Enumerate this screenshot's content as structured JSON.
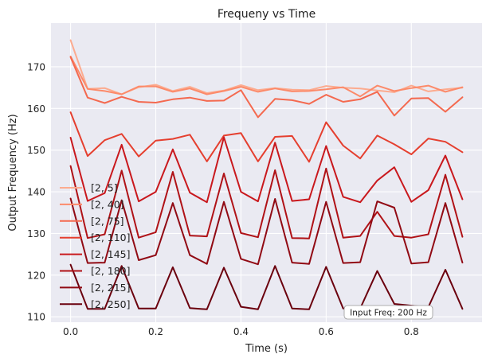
{
  "chart_data": {
    "type": "line",
    "title": "Frequeny vs Time",
    "xlabel": "Time (s)",
    "ylabel": "Output Frequency (Hz)",
    "xlim": [
      -0.046,
      0.966
    ],
    "ylim": [
      108.7,
      180.5
    ],
    "xticks": [
      0.0,
      0.2,
      0.4,
      0.6,
      0.8
    ],
    "xtick_labels": [
      "0.0",
      "0.2",
      "0.4",
      "0.6",
      "0.8"
    ],
    "yticks": [
      110,
      120,
      130,
      140,
      150,
      160,
      170
    ],
    "ytick_labels": [
      "110",
      "120",
      "130",
      "140",
      "150",
      "160",
      "170"
    ],
    "grid": true,
    "legend_position": "left",
    "annotation": "Input Freq: 200 Hz",
    "x": [
      0.0,
      0.04,
      0.08,
      0.12,
      0.16,
      0.2,
      0.24,
      0.28,
      0.32,
      0.36,
      0.4,
      0.44,
      0.48,
      0.52,
      0.56,
      0.6,
      0.64,
      0.68,
      0.72,
      0.76,
      0.8,
      0.84,
      0.88,
      0.92
    ],
    "series": [
      {
        "name": "[2, 5]",
        "color": "#fcab8f",
        "values": [
          176.4,
          164.7,
          164.9,
          163.4,
          165.1,
          165.7,
          164.2,
          165.2,
          163.7,
          164.3,
          165.6,
          164.4,
          164.9,
          164.5,
          164.4,
          165.4,
          165.0,
          164.8,
          164.3,
          163.9,
          165.5,
          164.1,
          164.6,
          165.0
        ]
      },
      {
        "name": "[2, 40]",
        "color": "#fc8a6a",
        "values": [
          172.5,
          164.7,
          164.2,
          163.4,
          165.3,
          165.3,
          164.0,
          164.8,
          163.4,
          164.2,
          165.2,
          164.0,
          164.8,
          164.1,
          164.2,
          164.6,
          165.1,
          162.9,
          165.5,
          164.2,
          164.9,
          165.5,
          164.0,
          165.1
        ]
      },
      {
        "name": "[2, 75]",
        "color": "#f4694f",
        "values": [
          172.3,
          162.6,
          161.3,
          162.8,
          161.6,
          161.4,
          162.2,
          162.6,
          161.8,
          161.9,
          164.4,
          157.9,
          162.3,
          162.0,
          161.1,
          163.3,
          161.6,
          162.2,
          164.0,
          158.3,
          162.4,
          162.5,
          159.2,
          162.7
        ]
      },
      {
        "name": "[2, 110]",
        "color": "#e53f2f",
        "values": [
          159.1,
          148.6,
          152.4,
          153.9,
          148.5,
          152.3,
          152.7,
          153.7,
          147.3,
          153.5,
          154.1,
          147.3,
          153.2,
          153.4,
          147.2,
          156.7,
          151.1,
          148.0,
          153.5,
          151.4,
          149.0,
          152.8,
          152.0,
          149.5
        ]
      },
      {
        "name": "[2, 145]",
        "color": "#c9181d",
        "values": [
          153.0,
          137.8,
          139.7,
          151.3,
          137.7,
          140.0,
          150.2,
          139.8,
          137.5,
          153.1,
          140.0,
          137.7,
          151.8,
          137.8,
          138.2,
          151.0,
          138.8,
          137.5,
          142.7,
          145.9,
          137.6,
          140.4,
          148.7,
          138.2
        ]
      },
      {
        "name": "[2, 180]",
        "color": "#b01217",
        "values": [
          146.2,
          128.9,
          129.8,
          145.1,
          129.0,
          130.3,
          144.8,
          129.5,
          129.3,
          144.4,
          130.1,
          129.1,
          145.2,
          128.9,
          128.8,
          145.6,
          129.0,
          129.4,
          135.2,
          129.4,
          129.0,
          129.8,
          144.1,
          129.2
        ]
      },
      {
        "name": "[2, 215]",
        "color": "#910a14",
        "values": [
          138.4,
          122.9,
          123.0,
          138.0,
          123.6,
          124.8,
          137.3,
          124.8,
          122.7,
          137.6,
          123.9,
          122.6,
          138.3,
          123.0,
          122.7,
          137.6,
          122.9,
          123.1,
          137.7,
          136.2,
          122.8,
          123.1,
          137.3,
          123.0
        ]
      },
      {
        "name": "[2, 250]",
        "color": "#6b010e",
        "values": [
          122.5,
          111.9,
          111.9,
          122.2,
          112.0,
          112.0,
          121.9,
          112.1,
          111.8,
          121.8,
          112.4,
          111.8,
          122.2,
          112.0,
          111.8,
          122.0,
          112.0,
          112.0,
          121.0,
          113.1,
          112.7,
          112.3,
          121.3,
          111.9
        ]
      }
    ]
  }
}
